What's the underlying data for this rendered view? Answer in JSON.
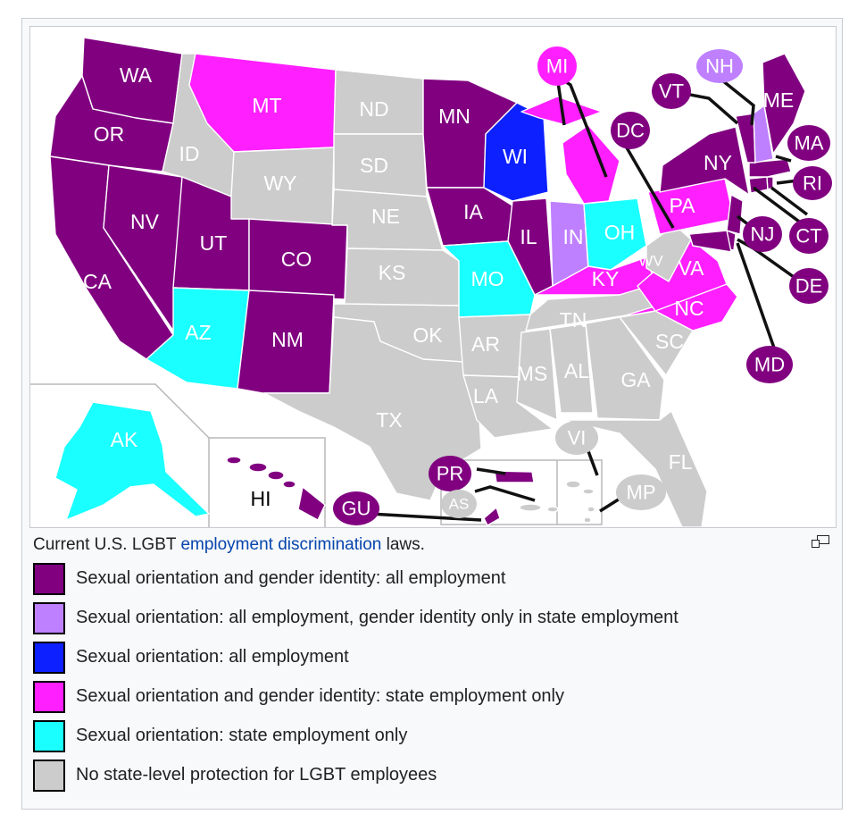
{
  "colors": {
    "all": "#800080",
    "so_all_gi_state": "#bf80ff",
    "so_all": "#0d20ff",
    "state_both": "#ff1fff",
    "state_so": "#1affff",
    "none": "#cccccc"
  },
  "caption": {
    "prefix": "Current U.S. LGBT ",
    "link": "employment discrimination",
    "suffix": " laws."
  },
  "enlarge_icon": "enlarge-icon",
  "legend": [
    {
      "key": "all",
      "label": "Sexual orientation and gender identity: all employment"
    },
    {
      "key": "so_all_gi_state",
      "label": "Sexual orientation: all employment, gender identity only in state employment"
    },
    {
      "key": "so_all",
      "label": "Sexual orientation: all employment"
    },
    {
      "key": "state_both",
      "label": "Sexual orientation and gender identity: state employment only"
    },
    {
      "key": "state_so",
      "label": "Sexual orientation: state employment only"
    },
    {
      "key": "none",
      "label": "No state-level protection for LGBT employees"
    }
  ],
  "states": {
    "WA": {
      "label": "WA",
      "cat": "all"
    },
    "OR": {
      "label": "OR",
      "cat": "all"
    },
    "CA": {
      "label": "CA",
      "cat": "all"
    },
    "NV": {
      "label": "NV",
      "cat": "all"
    },
    "ID": {
      "label": "ID",
      "cat": "none"
    },
    "MT": {
      "label": "MT",
      "cat": "state_both"
    },
    "WY": {
      "label": "WY",
      "cat": "none"
    },
    "UT": {
      "label": "UT",
      "cat": "all"
    },
    "CO": {
      "label": "CO",
      "cat": "all"
    },
    "AZ": {
      "label": "AZ",
      "cat": "state_so"
    },
    "NM": {
      "label": "NM",
      "cat": "all"
    },
    "ND": {
      "label": "ND",
      "cat": "none"
    },
    "SD": {
      "label": "SD",
      "cat": "none"
    },
    "NE": {
      "label": "NE",
      "cat": "none"
    },
    "KS": {
      "label": "KS",
      "cat": "none"
    },
    "OK": {
      "label": "OK",
      "cat": "none"
    },
    "TX": {
      "label": "TX",
      "cat": "none"
    },
    "MN": {
      "label": "MN",
      "cat": "all"
    },
    "IA": {
      "label": "IA",
      "cat": "all"
    },
    "MO": {
      "label": "MO",
      "cat": "state_so"
    },
    "AR": {
      "label": "AR",
      "cat": "none"
    },
    "LA": {
      "label": "LA",
      "cat": "none"
    },
    "WI": {
      "label": "WI",
      "cat": "so_all"
    },
    "IL": {
      "label": "IL",
      "cat": "all"
    },
    "MI": {
      "label": "MI",
      "cat": "state_both"
    },
    "IN": {
      "label": "IN",
      "cat": "so_all_gi_state"
    },
    "OH": {
      "label": "OH",
      "cat": "state_so"
    },
    "KY": {
      "label": "KY",
      "cat": "state_both"
    },
    "TN": {
      "label": "TN",
      "cat": "none"
    },
    "MS": {
      "label": "MS",
      "cat": "none"
    },
    "AL": {
      "label": "AL",
      "cat": "none"
    },
    "GA": {
      "label": "GA",
      "cat": "none"
    },
    "FL": {
      "label": "FL",
      "cat": "none"
    },
    "SC": {
      "label": "SC",
      "cat": "none"
    },
    "NC": {
      "label": "NC",
      "cat": "state_both"
    },
    "VA": {
      "label": "VA",
      "cat": "state_both"
    },
    "WV": {
      "label": "WV",
      "cat": "none"
    },
    "PA": {
      "label": "PA",
      "cat": "state_both"
    },
    "NY": {
      "label": "NY",
      "cat": "all"
    },
    "NJ": {
      "label": "NJ",
      "cat": "all"
    },
    "DE": {
      "label": "DE",
      "cat": "all"
    },
    "MD": {
      "label": "MD",
      "cat": "all"
    },
    "DC": {
      "label": "DC",
      "cat": "all"
    },
    "CT": {
      "label": "CT",
      "cat": "all"
    },
    "RI": {
      "label": "RI",
      "cat": "all"
    },
    "MA": {
      "label": "MA",
      "cat": "all"
    },
    "VT": {
      "label": "VT",
      "cat": "all"
    },
    "NH": {
      "label": "NH",
      "cat": "so_all_gi_state"
    },
    "ME": {
      "label": "ME",
      "cat": "all"
    },
    "AK": {
      "label": "AK",
      "cat": "state_so"
    },
    "HI": {
      "label": "HI",
      "cat": "all"
    },
    "PR": {
      "label": "PR",
      "cat": "all"
    },
    "GU": {
      "label": "GU",
      "cat": "all"
    },
    "VI": {
      "label": "VI",
      "cat": "none"
    },
    "AS": {
      "label": "AS",
      "cat": "none"
    },
    "MP": {
      "label": "MP",
      "cat": "none"
    }
  }
}
